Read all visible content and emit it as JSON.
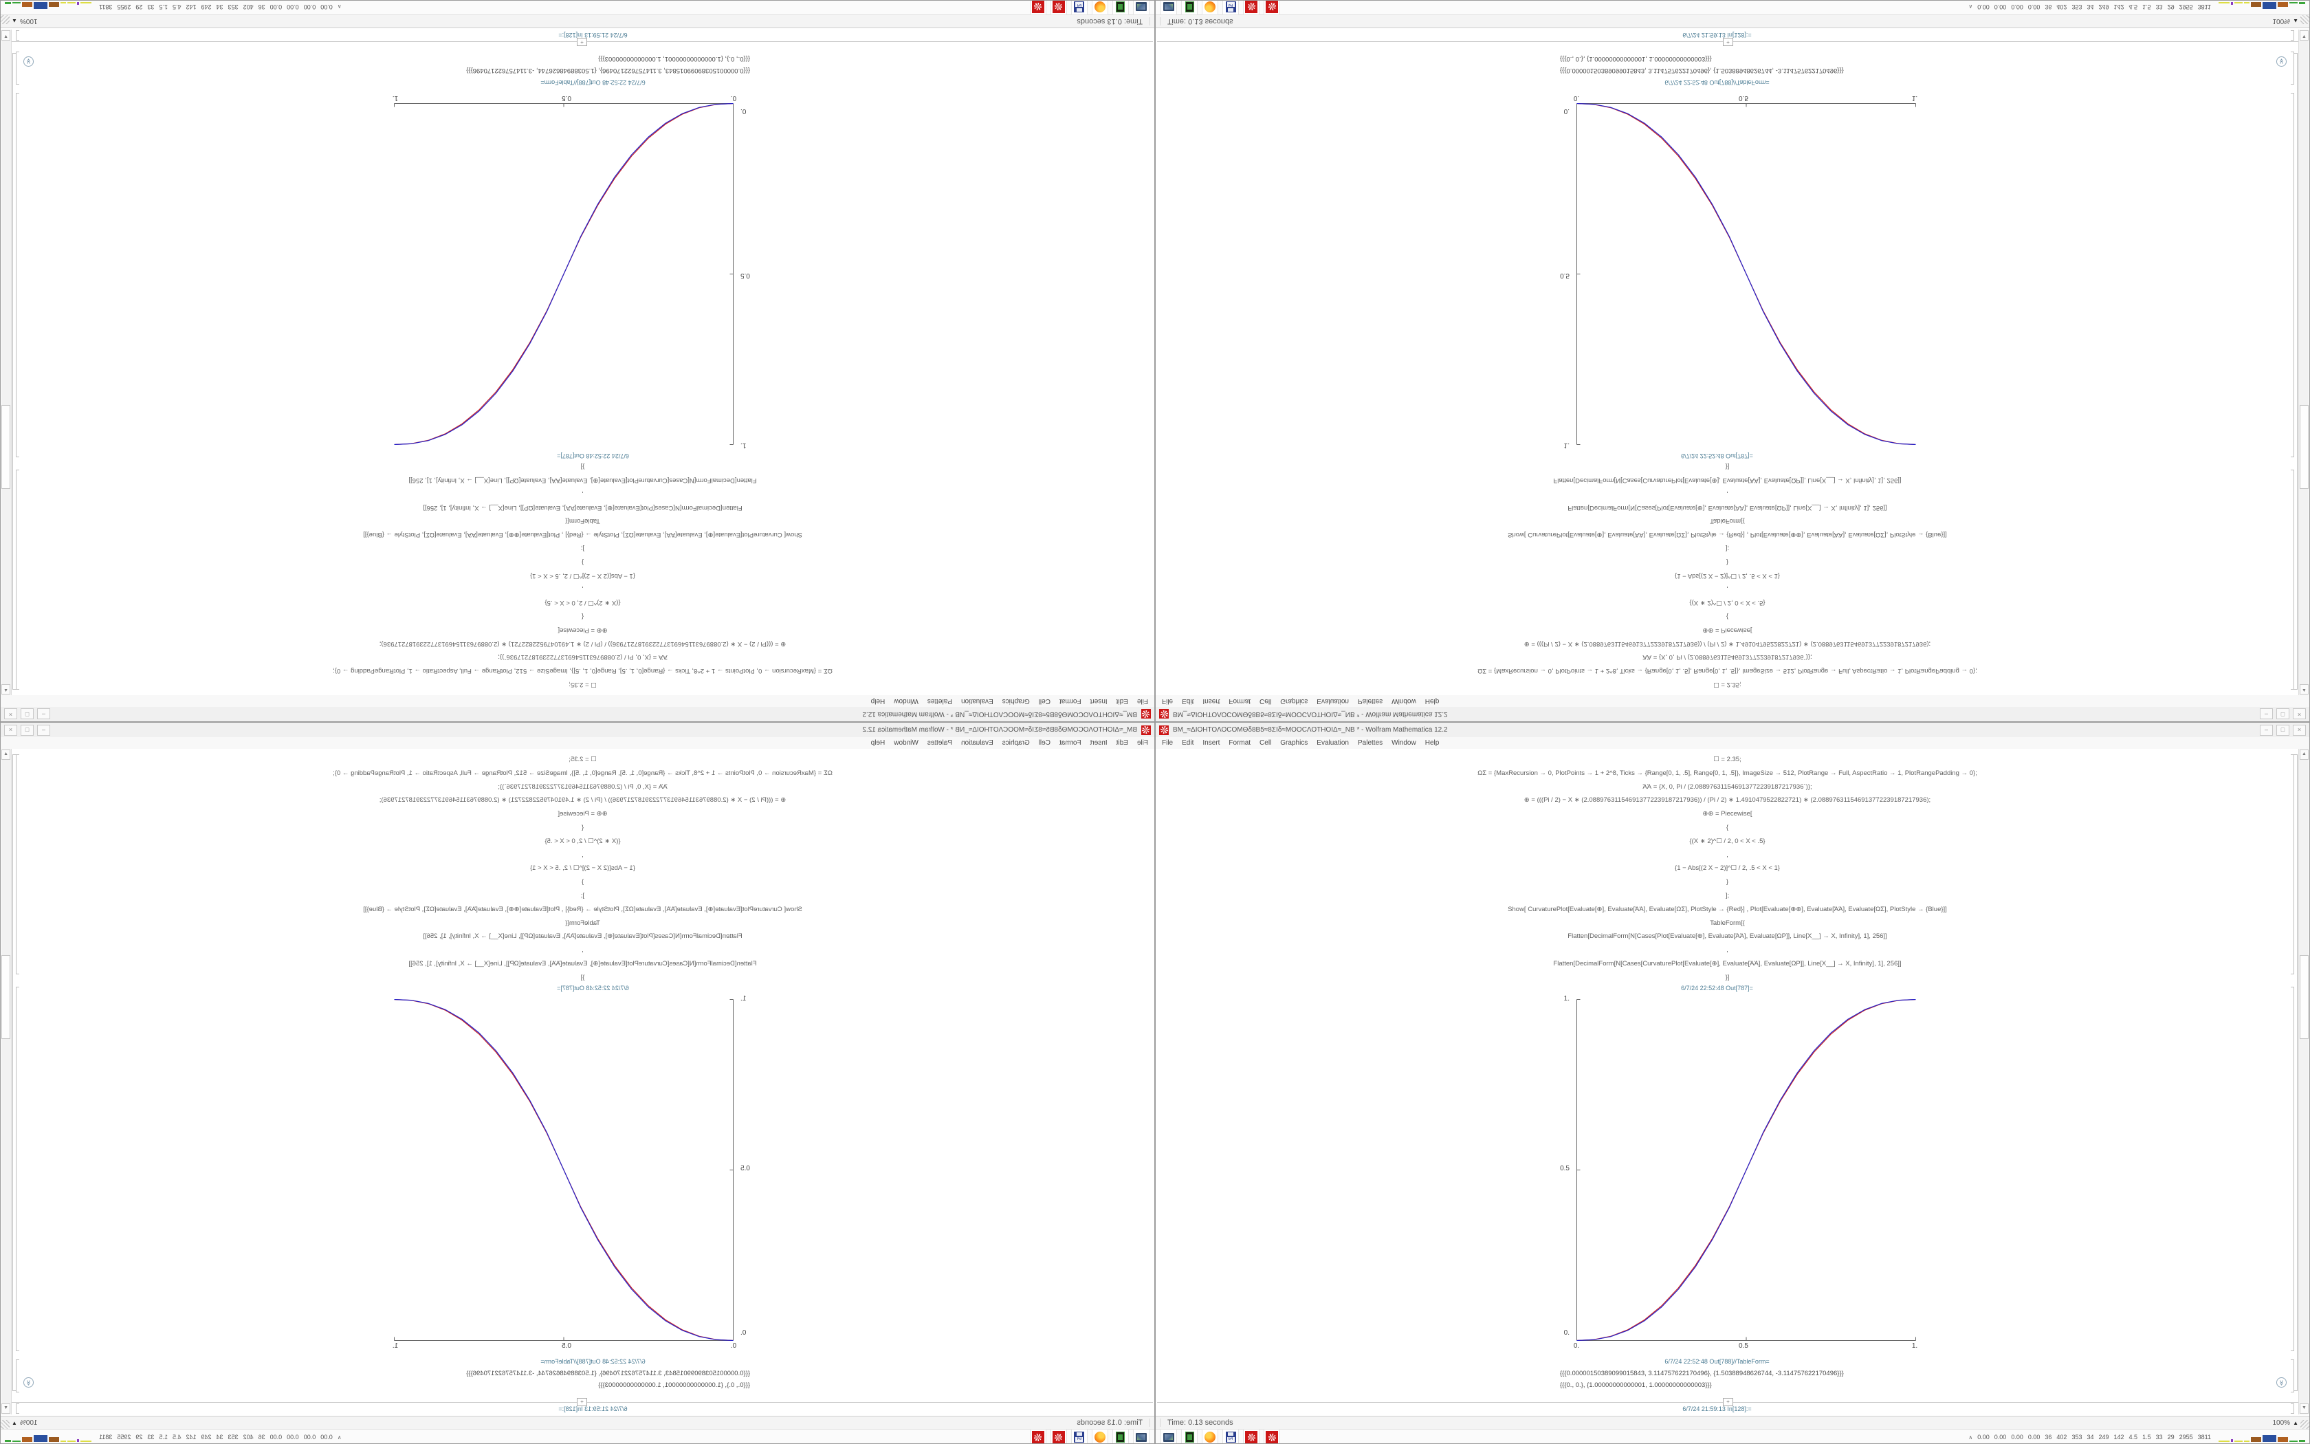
{
  "window": {
    "title": "ΒΜ_≈ΔΙΟΗΤΟΛΟCOMΘδ8Β5≈8ΣΙδ≈ΜΟΟCΛΟΤΗΟΙΔ≈_ΝΒ * - Wolfram Mathematica 12.2",
    "app_icon": "mathematica-gear-flower-icon",
    "controls": {
      "minimize": "–",
      "maximize": "□",
      "close": "×"
    },
    "menu": [
      "File",
      "Edit",
      "Insert",
      "Format",
      "Cell",
      "Graphics",
      "Evaluation",
      "Palettes",
      "Window",
      "Help"
    ]
  },
  "notebook": {
    "input_lines": [
      "☐ = 2.35;",
      "ΩΣ = {MaxRecursion → 0, PlotPoints → 1 + 2^8, Ticks → {Range[0, 1, .5], Range[0, 1, .5]}, ImageSize → 512, PlotRange → Full, AspectRatio → 1, PlotRangePadding → 0};",
      "ΆΆ = {X, 0, Pi / (2.088976311546913772239187217936`)};",
      "⊕ = (((Pi / 2) − X ∗ (2.088976311546913772239187217936)) / (Pi / 2) ∗ 1.4910479522822721) ∗ (2.088976311546913772239187217936);",
      "⊕⊕ = Piecewise[",
      "{",
      "{(X ∗ 2)^☐ / 2, 0 < X < .5}",
      ",",
      "{1 − Abs[(2 X − 2)]^☐ / 2, .5 < X < 1}",
      "}",
      "];",
      "Show[ CurvaturePlot[Evaluate[⊕], Evaluate[ΆΆ], Evaluate[ΩΣ], PlotStyle → {Red}] , Plot[Evaluate[⊕⊕], Evaluate[ΆΆ], Evaluate[ΩΣ], PlotStyle → {Blue}]]",
      "TableForm[{",
      "Flatten[DecimalForm[N[Cases[Plot[Evaluate[⊕], Evaluate[ΆΆ], Evaluate[ΩΡ]], Line[X__] → X, Infinity], 1], 256]]",
      ",",
      "Flatten[DecimalForm[N[Cases[CurvaturePlot[Evaluate[⊕], Evaluate[ΆΆ], Evaluate[ΩΡ]], Line[X__] → X, Infinity], 1], 256]]",
      "}]"
    ],
    "out_label_1": "6/7/24 22:52:48 Out[787]=",
    "out_label_2": "6/7/24 22:52:48 Out[788]//TableForm=",
    "table_rows": [
      "{{{0.00000150389099015843, 3.114757622170496}, {1.50388948626744, -3.114757622170496}}}",
      "{{{0., 0.}, {1.00000000000001, 1.00000000000003}}}"
    ],
    "insert_plus": "+",
    "next_in_label": "6/7/24 21:59:13 In[128]:=",
    "group_chevron": "≫"
  },
  "chart_data": {
    "type": "line",
    "title": "",
    "xlabel": "",
    "ylabel": "",
    "xlim": [
      0,
      1
    ],
    "ylim": [
      0,
      1
    ],
    "grid": false,
    "legend": "none",
    "axes": "left-bottom",
    "xticks": {
      "values": [
        0,
        0.5,
        1
      ],
      "labels": [
        "0.",
        "0.5",
        "1."
      ]
    },
    "yticks": {
      "values": [
        0,
        0.5,
        1
      ],
      "labels": [
        "0.",
        "0.5",
        "1."
      ]
    },
    "x": [
      0,
      0.05,
      0.1,
      0.15,
      0.2,
      0.25,
      0.3,
      0.35,
      0.4,
      0.45,
      0.5,
      0.55,
      0.6,
      0.65,
      0.7,
      0.75,
      0.8,
      0.85,
      0.9,
      0.95,
      1
    ],
    "series": [
      {
        "name": "CurvaturePlot (Red)",
        "color": "#cc1f1f",
        "y": [
          0,
          0.0025,
          0.0123,
          0.0313,
          0.0607,
          0.1016,
          0.1544,
          0.22,
          0.299,
          0.392,
          0.5,
          0.608,
          0.701,
          0.78,
          0.8456,
          0.8984,
          0.9393,
          0.9687,
          0.9877,
          0.9975,
          1
        ]
      },
      {
        "name": "Plot Piecewise (Blue)",
        "color": "#2323cc",
        "y": [
          0,
          0.0022,
          0.0114,
          0.0295,
          0.058,
          0.098,
          0.1505,
          0.216,
          0.296,
          0.39,
          0.5,
          0.61,
          0.704,
          0.784,
          0.8495,
          0.902,
          0.942,
          0.9705,
          0.9886,
          0.9978,
          1
        ]
      }
    ]
  },
  "status": {
    "time": "Time: 0.13 seconds",
    "zoom_level": "100%",
    "zoom_arrow": "▲"
  },
  "scrollbar": {
    "up": "▲",
    "down": "▼"
  },
  "taskbar": {
    "icons": [
      {
        "name": "remote-desktop"
      },
      {
        "name": "green-app"
      },
      {
        "name": "firefox"
      },
      {
        "name": "floppy-64",
        "label": "64"
      },
      {
        "name": "mathematica-1"
      },
      {
        "name": "mathematica-2"
      }
    ],
    "tray": {
      "chevron": "∧",
      "values": [
        "0.00",
        "0.00",
        "0.00",
        "0.00",
        "36",
        "402",
        "353",
        "34",
        "249",
        "142",
        "4.5",
        "1.5",
        "33",
        "29",
        "2955",
        "3811"
      ],
      "spark": [
        {
          "c": "#dede44",
          "w": 16,
          "h": 2
        },
        {
          "c": "#8a3bbf",
          "w": 3,
          "h": 4
        },
        {
          "c": "#dede44",
          "w": 12,
          "h": 2
        },
        {
          "c": "#dede44",
          "w": 8,
          "h": 2
        },
        {
          "c": "#9a5a20",
          "w": 15,
          "h": 7
        },
        {
          "c": "#2a4f9e",
          "w": 20,
          "h": 10
        },
        {
          "c": "#b06020",
          "w": 15,
          "h": 7
        },
        {
          "c": "#3aa63a",
          "w": 12,
          "h": 2
        },
        {
          "c": "#3aa63a",
          "w": 9,
          "h": 3
        }
      ]
    }
  },
  "layout_note": "same window screenshot tiled 2x2: bottom-right normal, bottom-left mirrored horizontally, top-right flipped vertically, top-left rotated 180°",
  "colors": {
    "series_red": "#cc1f1f",
    "series_blue": "#2323cc",
    "cell_label_teal": "#4a7b93",
    "mathematica_red": "#cc1616",
    "titlebar_gray": "#f0f0f0"
  }
}
